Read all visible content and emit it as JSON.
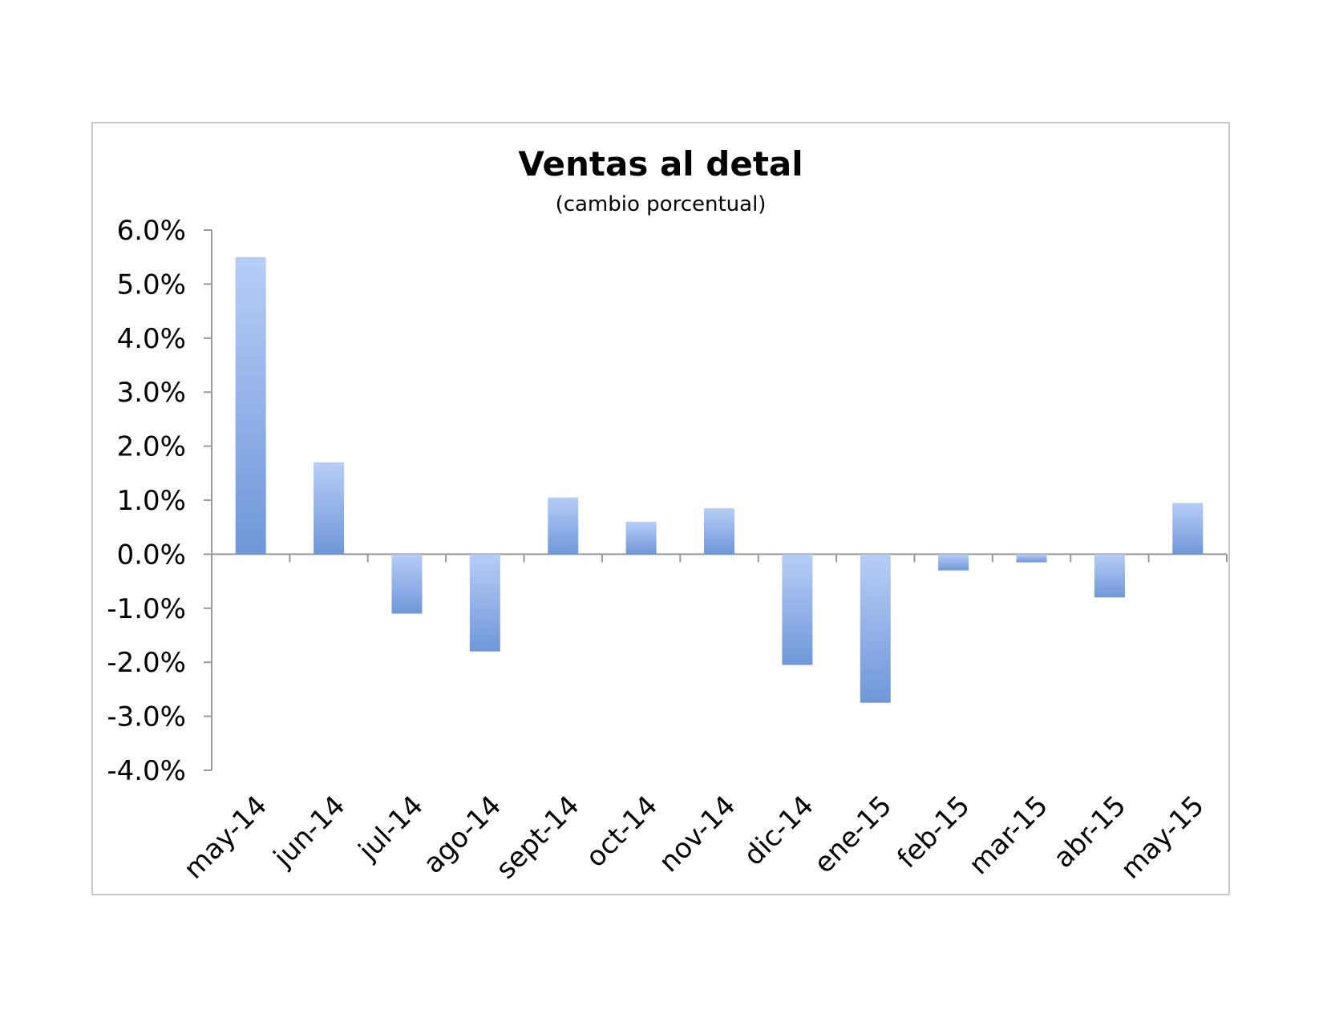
{
  "chart_data": {
    "type": "bar",
    "title": "Ventas al detal",
    "subtitle": "(cambio porcentual)",
    "xlabel": "",
    "ylabel": "",
    "categories": [
      "may-14",
      "jun-14",
      "jul-14",
      "ago-14",
      "sept-14",
      "oct-14",
      "nov-14",
      "dic-14",
      "ene-15",
      "feb-15",
      "mar-15",
      "abr-15",
      "may-15"
    ],
    "values": [
      5.5,
      1.7,
      -1.1,
      -1.8,
      1.05,
      0.6,
      0.85,
      -2.05,
      -2.75,
      -0.3,
      -0.15,
      -0.8,
      0.95
    ],
    "ylim": [
      -4.0,
      6.0
    ],
    "y_ticks": [
      6.0,
      5.0,
      4.0,
      3.0,
      2.0,
      1.0,
      0.0,
      -1.0,
      -2.0,
      -3.0,
      -4.0
    ],
    "y_tick_labels": [
      "6.0%",
      "5.0%",
      "4.0%",
      "3.0%",
      "2.0%",
      "1.0%",
      "0.0%",
      "-1.0%",
      "-2.0%",
      "-3.0%",
      "-4.0%"
    ],
    "grid": false,
    "legend": "none",
    "colors": {
      "bar_light": "#b7cdf7",
      "bar_dark": "#6f97d9",
      "axis": "#999999",
      "frame_border": "#c8c8c8"
    }
  }
}
